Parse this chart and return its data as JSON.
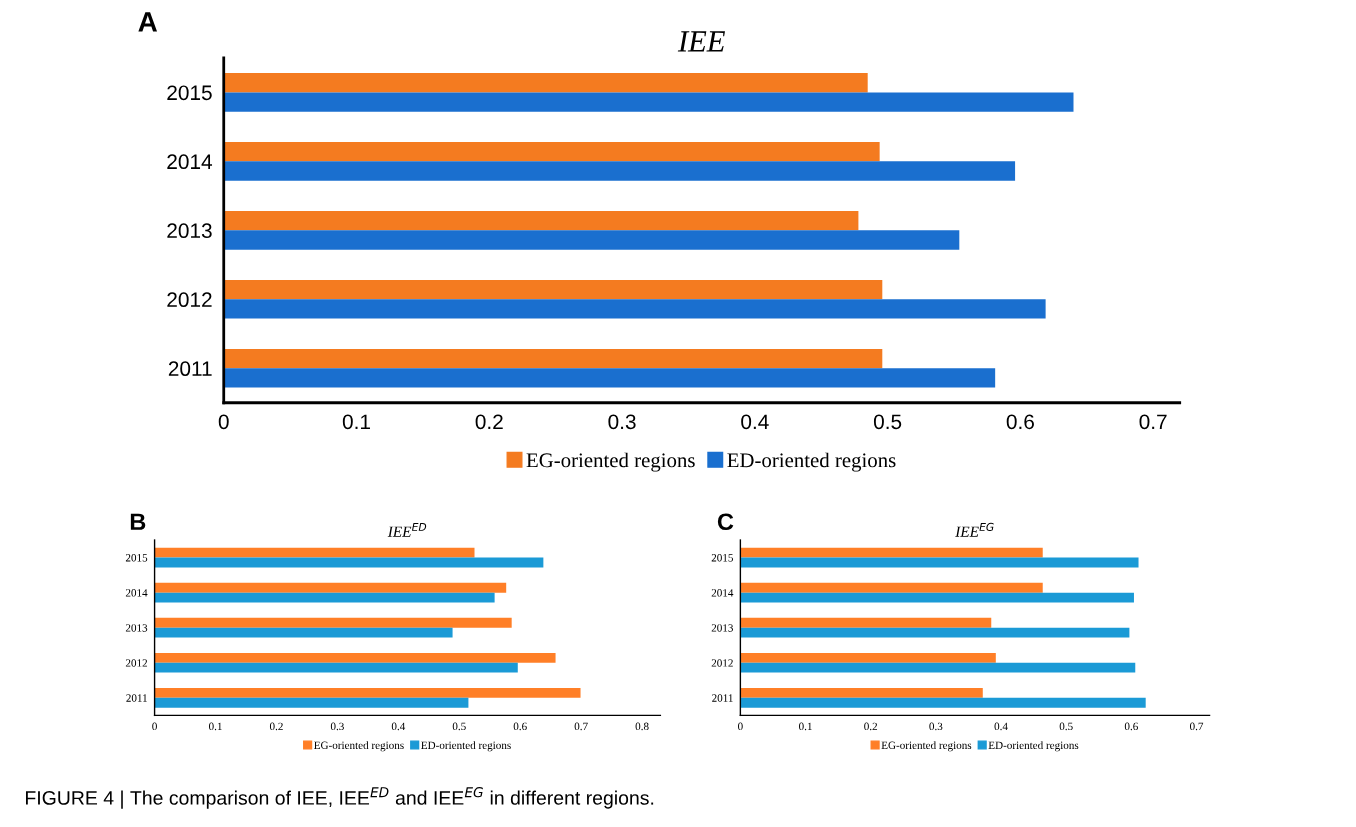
{
  "chart_data": [
    {
      "type": "bar",
      "orientation": "horizontal",
      "title": "IEE",
      "categories": [
        "2015",
        "2014",
        "2013",
        "2012",
        "2011"
      ],
      "xlim": [
        0,
        0.72
      ],
      "xticks": [
        0,
        0.1,
        0.2,
        0.3,
        0.4,
        0.5,
        0.6,
        0.7
      ],
      "grid": false,
      "legend": "bottom",
      "annotations": [
        "A",
        "FIGURE 4 | The comparison of IEE, IEE$^{ED}$ and IEE$^{EG}$ in different regions."
      ],
      "series": [
        {
          "name": "EG-oriented regions",
          "color": "#f47b20",
          "values": [
            0.485,
            0.494,
            0.478,
            0.496,
            0.496
          ]
        },
        {
          "name": "ED-oriented regions",
          "color": "#1a6fcf",
          "values": [
            0.64,
            0.596,
            0.554,
            0.619,
            0.581
          ]
        }
      ]
    },
    {
      "type": "bar",
      "orientation": "horizontal",
      "title": "IEE$^{ED}$",
      "categories": [
        "2015",
        "2014",
        "2013",
        "2012",
        "2011"
      ],
      "xlim": [
        0,
        0.83
      ],
      "xticks": [
        0,
        0.1,
        0.2,
        0.3,
        0.4,
        0.5,
        0.6,
        0.7,
        0.8
      ],
      "grid": false,
      "legend": "bottom",
      "annotations": [
        "B"
      ],
      "series": [
        {
          "name": "EG-oriented regions",
          "color": "#ff7f27",
          "values": [
            0.525,
            0.577,
            0.586,
            0.658,
            0.699
          ]
        },
        {
          "name": "ED-oriented regions",
          "color": "#1b9ad6",
          "values": [
            0.638,
            0.558,
            0.489,
            0.596,
            0.515
          ]
        }
      ]
    },
    {
      "type": "bar",
      "orientation": "horizontal",
      "title": "IEE$^{EG}$",
      "categories": [
        "2015",
        "2014",
        "2013",
        "2012",
        "2011"
      ],
      "xlim": [
        0,
        0.72
      ],
      "xticks": [
        0,
        0.1,
        0.2,
        0.3,
        0.4,
        0.5,
        0.6,
        0.7
      ],
      "grid": false,
      "legend": "bottom",
      "annotations": [
        "C"
      ],
      "series": [
        {
          "name": "EG-oriented regions",
          "color": "#ff7f27",
          "values": [
            0.464,
            0.464,
            0.385,
            0.392,
            0.372
          ]
        },
        {
          "name": "ED-oriented regions",
          "color": "#1b9ad6",
          "values": [
            0.611,
            0.604,
            0.597,
            0.606,
            0.622
          ]
        }
      ]
    }
  ]
}
